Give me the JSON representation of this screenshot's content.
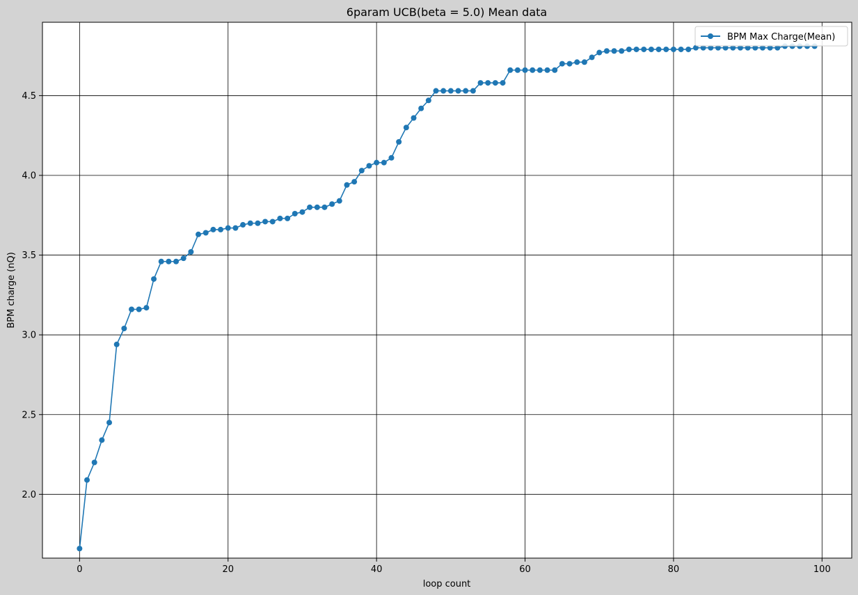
{
  "chart_data": {
    "type": "line",
    "title": "6param UCB(beta = 5.0) Mean data",
    "xlabel": "loop count",
    "ylabel": "BPM charge (nQ)",
    "xlim": [
      -5,
      104
    ],
    "ylim": [
      1.6,
      4.96
    ],
    "xticks": [
      0,
      20,
      40,
      60,
      80,
      100
    ],
    "yticks": [
      2.0,
      2.5,
      3.0,
      3.5,
      4.0,
      4.5
    ],
    "xtick_labels": [
      "0",
      "20",
      "40",
      "60",
      "80",
      "100"
    ],
    "ytick_labels": [
      "2.0",
      "2.5",
      "3.0",
      "3.5",
      "4.0",
      "4.5"
    ],
    "grid": true,
    "legend_position": "top-right",
    "series": [
      {
        "name": "BPM Max Charge(Mean)",
        "color": "#1f77b4",
        "marker": "circle",
        "x": [
          0,
          1,
          2,
          3,
          4,
          5,
          6,
          7,
          8,
          9,
          10,
          11,
          12,
          13,
          14,
          15,
          16,
          17,
          18,
          19,
          20,
          21,
          22,
          23,
          24,
          25,
          26,
          27,
          28,
          29,
          30,
          31,
          32,
          33,
          34,
          35,
          36,
          37,
          38,
          39,
          40,
          41,
          42,
          43,
          44,
          45,
          46,
          47,
          48,
          49,
          50,
          51,
          52,
          53,
          54,
          55,
          56,
          57,
          58,
          59,
          60,
          61,
          62,
          63,
          64,
          65,
          66,
          67,
          68,
          69,
          70,
          71,
          72,
          73,
          74,
          75,
          76,
          77,
          78,
          79,
          80,
          81,
          82,
          83,
          84,
          85,
          86,
          87,
          88,
          89,
          90,
          91,
          92,
          93,
          94,
          95,
          96,
          97,
          98,
          99
        ],
        "values": [
          1.66,
          2.09,
          2.2,
          2.34,
          2.45,
          2.94,
          3.04,
          3.16,
          3.16,
          3.17,
          3.35,
          3.46,
          3.46,
          3.46,
          3.48,
          3.52,
          3.63,
          3.64,
          3.66,
          3.66,
          3.67,
          3.67,
          3.69,
          3.7,
          3.7,
          3.71,
          3.71,
          3.73,
          3.73,
          3.76,
          3.77,
          3.8,
          3.8,
          3.8,
          3.82,
          3.84,
          3.94,
          3.96,
          4.03,
          4.06,
          4.08,
          4.08,
          4.11,
          4.21,
          4.3,
          4.36,
          4.42,
          4.47,
          4.53,
          4.53,
          4.53,
          4.53,
          4.53,
          4.53,
          4.58,
          4.58,
          4.58,
          4.58,
          4.66,
          4.66,
          4.66,
          4.66,
          4.66,
          4.66,
          4.66,
          4.7,
          4.7,
          4.71,
          4.71,
          4.74,
          4.77,
          4.78,
          4.78,
          4.78,
          4.79,
          4.79,
          4.79,
          4.79,
          4.79,
          4.79,
          4.79,
          4.79,
          4.79,
          4.8,
          4.8,
          4.8,
          4.8,
          4.8,
          4.8,
          4.8,
          4.8,
          4.8,
          4.8,
          4.8,
          4.8,
          4.81,
          4.81,
          4.81,
          4.81,
          4.81
        ]
      }
    ]
  }
}
